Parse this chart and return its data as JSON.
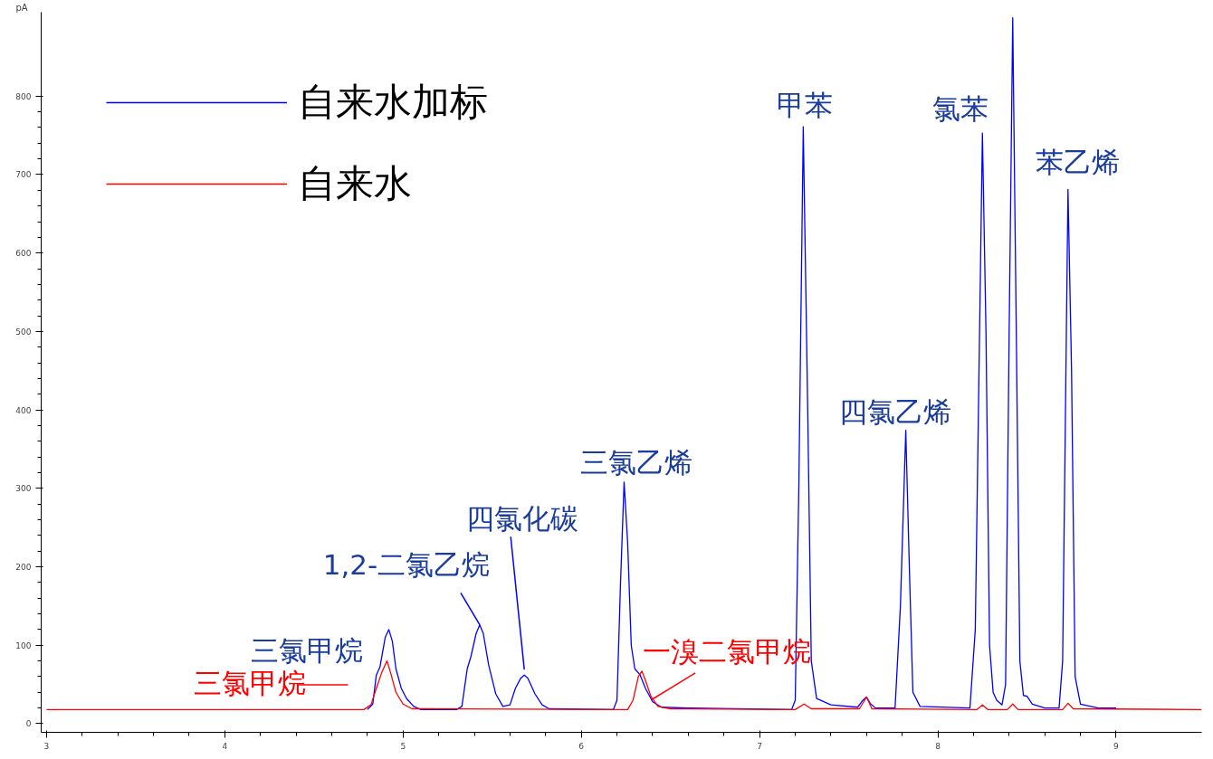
{
  "chart_data": {
    "type": "line",
    "ylabel": "pA",
    "xlim": [
      2.97,
      9.48
    ],
    "ylim": [
      -11,
      907
    ],
    "xticks": [
      3,
      4,
      5,
      6,
      7,
      8,
      9
    ],
    "yticks": [
      0,
      100,
      200,
      300,
      400,
      500,
      600,
      700,
      800
    ],
    "grid": false,
    "legend": "top left",
    "line_style": "solid",
    "marker": "none",
    "series": [
      {
        "name": "自来水加标",
        "color": "#0000ff",
        "x": [
          4.8,
          4.83,
          4.85,
          4.87,
          4.9,
          4.92,
          4.94,
          4.96,
          4.99,
          5.02,
          5.06,
          5.1,
          5.3,
          5.33,
          5.36,
          5.38,
          5.41,
          5.43,
          5.45,
          5.48,
          5.52,
          5.56,
          5.6,
          5.63,
          5.66,
          5.68,
          5.7,
          5.74,
          5.78,
          5.82,
          6.18,
          6.2,
          6.22,
          6.24,
          6.26,
          6.28,
          6.3,
          6.33,
          6.36,
          6.4,
          6.45,
          6.6,
          7.18,
          7.2,
          7.22,
          7.245,
          7.27,
          7.29,
          7.32,
          7.4,
          7.55,
          7.58,
          7.6,
          7.62,
          7.65,
          7.76,
          7.79,
          7.82,
          7.84,
          7.86,
          7.9,
          8.18,
          8.21,
          8.25,
          8.27,
          8.29,
          8.31,
          8.33,
          8.36,
          8.38,
          8.4,
          8.42,
          8.44,
          8.46,
          8.48,
          8.5,
          8.53,
          8.6,
          8.68,
          8.7,
          8.73,
          8.75,
          8.77,
          8.8,
          8.9,
          9.0
        ],
        "values": [
          18,
          25,
          62,
          72,
          110,
          120,
          105,
          70,
          45,
          32,
          22,
          18,
          18,
          22,
          70,
          85,
          115,
          126,
          115,
          75,
          38,
          22,
          24,
          45,
          58,
          62,
          58,
          38,
          24,
          19,
          18,
          30,
          180,
          308,
          230,
          100,
          70,
          62,
          45,
          28,
          21,
          20,
          18,
          30,
          300,
          761,
          400,
          80,
          32,
          24,
          21,
          30,
          34,
          26,
          20,
          20,
          150,
          374,
          200,
          40,
          22,
          20,
          120,
          753,
          500,
          100,
          40,
          30,
          24,
          50,
          500,
          900,
          500,
          80,
          36,
          35,
          25,
          20,
          20,
          80,
          681,
          450,
          60,
          25,
          20,
          20
        ]
      },
      {
        "name": "自来水",
        "color": "#ff0000",
        "x": [
          3.0,
          4.78,
          4.82,
          4.85,
          4.88,
          4.91,
          4.93,
          4.96,
          5.0,
          5.05,
          6.26,
          6.29,
          6.32,
          6.34,
          6.36,
          6.39,
          6.43,
          6.5,
          7.2,
          7.25,
          7.29,
          7.56,
          7.6,
          7.63,
          8.22,
          8.25,
          8.28,
          8.39,
          8.42,
          8.45,
          8.7,
          8.73,
          8.76,
          9.48
        ],
        "values": [
          18,
          18,
          24,
          45,
          65,
          80,
          65,
          40,
          25,
          19,
          18,
          30,
          60,
          67,
          55,
          35,
          22,
          19,
          18,
          25,
          19,
          19,
          34,
          19,
          18,
          24,
          18,
          18,
          25,
          18,
          18,
          26,
          19,
          18
        ]
      }
    ],
    "annotations": [
      {
        "text": "三氯甲烷",
        "x": 4.92,
        "y": 120
      },
      {
        "text": "1,2-二氯乙烷",
        "x": 5.43,
        "y": 126
      },
      {
        "text": "四氯化碳",
        "x": 5.68,
        "y": 62
      },
      {
        "text": "三氯乙烯",
        "x": 6.24,
        "y": 308
      },
      {
        "text": "甲苯",
        "x": 7.245,
        "y": 761
      },
      {
        "text": "四氯乙烯",
        "x": 7.82,
        "y": 374
      },
      {
        "text": "氯苯",
        "x": 8.25,
        "y": 753
      },
      {
        "text": "苯乙烯",
        "x": 8.73,
        "y": 681
      },
      {
        "text": "三氯甲烷",
        "x": 4.91,
        "y": 80
      },
      {
        "text": "一溴二氯甲烷",
        "x": 6.34,
        "y": 67
      }
    ]
  }
}
